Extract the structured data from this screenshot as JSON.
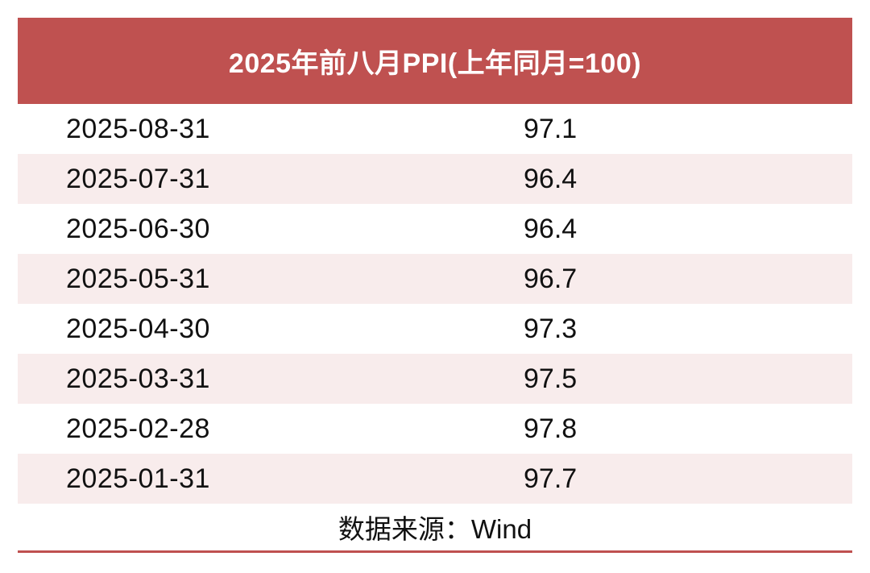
{
  "header": {
    "title": "2025年前八月PPI(上年同月=100)"
  },
  "table": {
    "rows": [
      {
        "date": "2025-08-31",
        "value": "97.1"
      },
      {
        "date": "2025-07-31",
        "value": "96.4"
      },
      {
        "date": "2025-06-30",
        "value": "96.4"
      },
      {
        "date": "2025-05-31",
        "value": "96.7"
      },
      {
        "date": "2025-04-30",
        "value": "97.3"
      },
      {
        "date": "2025-03-31",
        "value": "97.5"
      },
      {
        "date": "2025-02-28",
        "value": "97.8"
      },
      {
        "date": "2025-01-31",
        "value": "97.7"
      }
    ]
  },
  "footer": {
    "source_label": "数据来源：Wind"
  },
  "colors": {
    "banner_red": "#BF5150",
    "row_pink": "#F8ECEC",
    "divider_red": "#BF5150",
    "text": "#111111",
    "title_text": "#FFFFFF"
  },
  "chart_data": {
    "type": "table",
    "title": "2025年前八月PPI(上年同月=100)",
    "categories": [
      "2025-08-31",
      "2025-07-31",
      "2025-06-30",
      "2025-05-31",
      "2025-04-30",
      "2025-03-31",
      "2025-02-28",
      "2025-01-31"
    ],
    "values": [
      97.1,
      96.4,
      96.4,
      96.7,
      97.3,
      97.5,
      97.8,
      97.7
    ],
    "source": "数据来源：Wind",
    "layout": {
      "row_striping": "white / light pink alternating, starting white",
      "header_style": "red banner, white bold centered text",
      "bottom_rule": "thin red line under source row"
    }
  }
}
